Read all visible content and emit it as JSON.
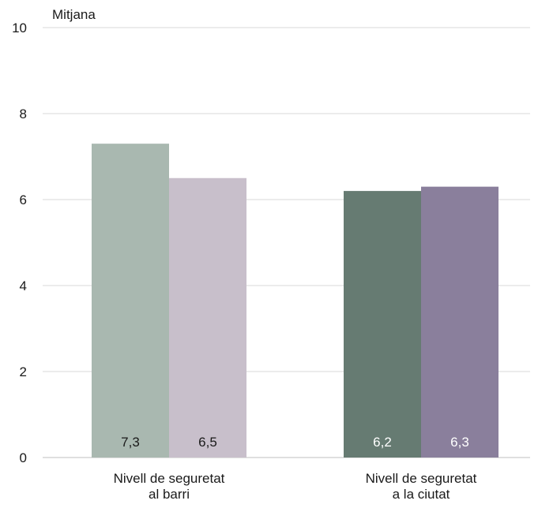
{
  "chart_data": {
    "type": "bar",
    "ylabel": "Mitjana",
    "ylim": [
      0,
      10
    ],
    "yticks": [
      0,
      2,
      4,
      6,
      8,
      10
    ],
    "grid": true,
    "categories": [
      [
        "Nivell de seguretat",
        "al barri"
      ],
      [
        "Nivell de seguretat",
        "a la ciutat"
      ]
    ],
    "bars": [
      {
        "category": 0,
        "value": 7.3,
        "label": "7,3",
        "color": "#a9b8b0",
        "label_color": "#1a1a1a"
      },
      {
        "category": 0,
        "value": 6.5,
        "label": "6,5",
        "color": "#c8bfcb",
        "label_color": "#1a1a1a"
      },
      {
        "category": 1,
        "value": 6.2,
        "label": "6,2",
        "color": "#667b72",
        "label_color": "#ffffff"
      },
      {
        "category": 1,
        "value": 6.3,
        "label": "6,3",
        "color": "#8a7f9c",
        "label_color": "#ffffff"
      }
    ]
  }
}
